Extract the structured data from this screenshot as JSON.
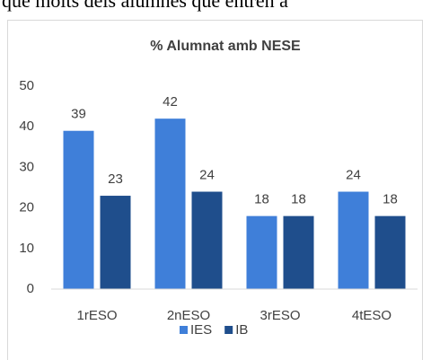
{
  "document_text": "que molts dels alumnes que entren a",
  "chart_data": {
    "type": "bar",
    "title": "% Alumnat amb NESE",
    "categories": [
      "1rESO",
      "2nESO",
      "3rESO",
      "4tESO"
    ],
    "series": [
      {
        "name": "IES",
        "color": "#3f7fd9",
        "values": [
          39,
          42,
          18,
          24
        ]
      },
      {
        "name": "IB",
        "color": "#1f4e8c",
        "values": [
          23,
          24,
          18,
          18
        ]
      }
    ],
    "ylim": [
      0,
      50
    ],
    "yticks": [
      0,
      10,
      20,
      30,
      40,
      50
    ],
    "grid": false,
    "legend": "bottom"
  }
}
